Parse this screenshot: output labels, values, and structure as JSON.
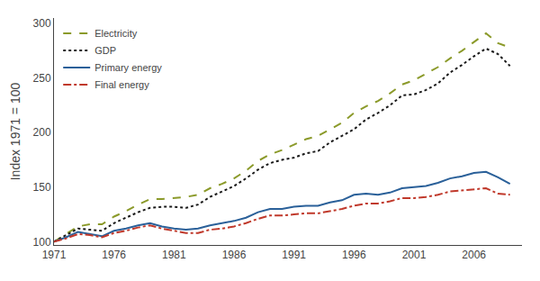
{
  "chart_data": {
    "type": "line",
    "ylabel": "Index 1971 = 100",
    "x": [
      1971,
      1972,
      1973,
      1974,
      1975,
      1976,
      1977,
      1978,
      1979,
      1980,
      1981,
      1982,
      1983,
      1984,
      1985,
      1986,
      1987,
      1988,
      1989,
      1990,
      1991,
      1992,
      1993,
      1994,
      1995,
      1996,
      1997,
      1998,
      1999,
      2000,
      2001,
      2002,
      2003,
      2004,
      2005,
      2006,
      2007,
      2008,
      2009
    ],
    "series": [
      {
        "name": "Electricity",
        "color": "#8B9A2A",
        "line_style": "dashed",
        "values": [
          100,
          107,
          114,
          116,
          116,
          123,
          128,
          134,
          139,
          139,
          140,
          141,
          143,
          149,
          153,
          158,
          165,
          174,
          180,
          184,
          189,
          194,
          197,
          203,
          209,
          218,
          224,
          229,
          236,
          244,
          248,
          254,
          260,
          268,
          275,
          283,
          291,
          282,
          278
        ]
      },
      {
        "name": "GDP",
        "color": "#1a1a1a",
        "line_style": "dotted",
        "values": [
          100,
          106,
          112,
          111,
          110,
          117,
          122,
          127,
          131,
          132,
          132,
          131,
          134,
          141,
          146,
          151,
          158,
          166,
          172,
          175,
          177,
          181,
          183,
          191,
          197,
          203,
          212,
          218,
          225,
          234,
          235,
          239,
          245,
          255,
          262,
          270,
          277,
          272,
          261
        ]
      },
      {
        "name": "Primary energy",
        "color": "#2a6099",
        "line_style": "solid",
        "values": [
          100,
          104,
          109,
          107,
          105,
          110,
          112,
          115,
          117,
          114,
          112,
          111,
          112,
          115,
          117,
          119,
          122,
          127,
          130,
          130,
          132,
          133,
          133,
          136,
          138,
          143,
          144,
          143,
          145,
          149,
          150,
          151,
          154,
          158,
          160,
          163,
          164,
          159,
          153
        ]
      },
      {
        "name": "Final energy",
        "color": "#c0392b",
        "line_style": "dashdot",
        "values": [
          100,
          103,
          107,
          106,
          104,
          108,
          110,
          113,
          115,
          112,
          110,
          108,
          108,
          111,
          112,
          114,
          117,
          121,
          124,
          124,
          125,
          126,
          126,
          128,
          130,
          133,
          135,
          135,
          137,
          140,
          140,
          141,
          143,
          146,
          147,
          148,
          149,
          144,
          143
        ]
      }
    ],
    "xlim": [
      1971,
      2010
    ],
    "xticks": [
      1971,
      1976,
      1981,
      1986,
      1991,
      1996,
      2001,
      2006
    ],
    "ylim": [
      97,
      305
    ],
    "yticks": [
      100,
      150,
      200,
      250,
      300
    ],
    "grid": false,
    "legend": "upper left"
  }
}
